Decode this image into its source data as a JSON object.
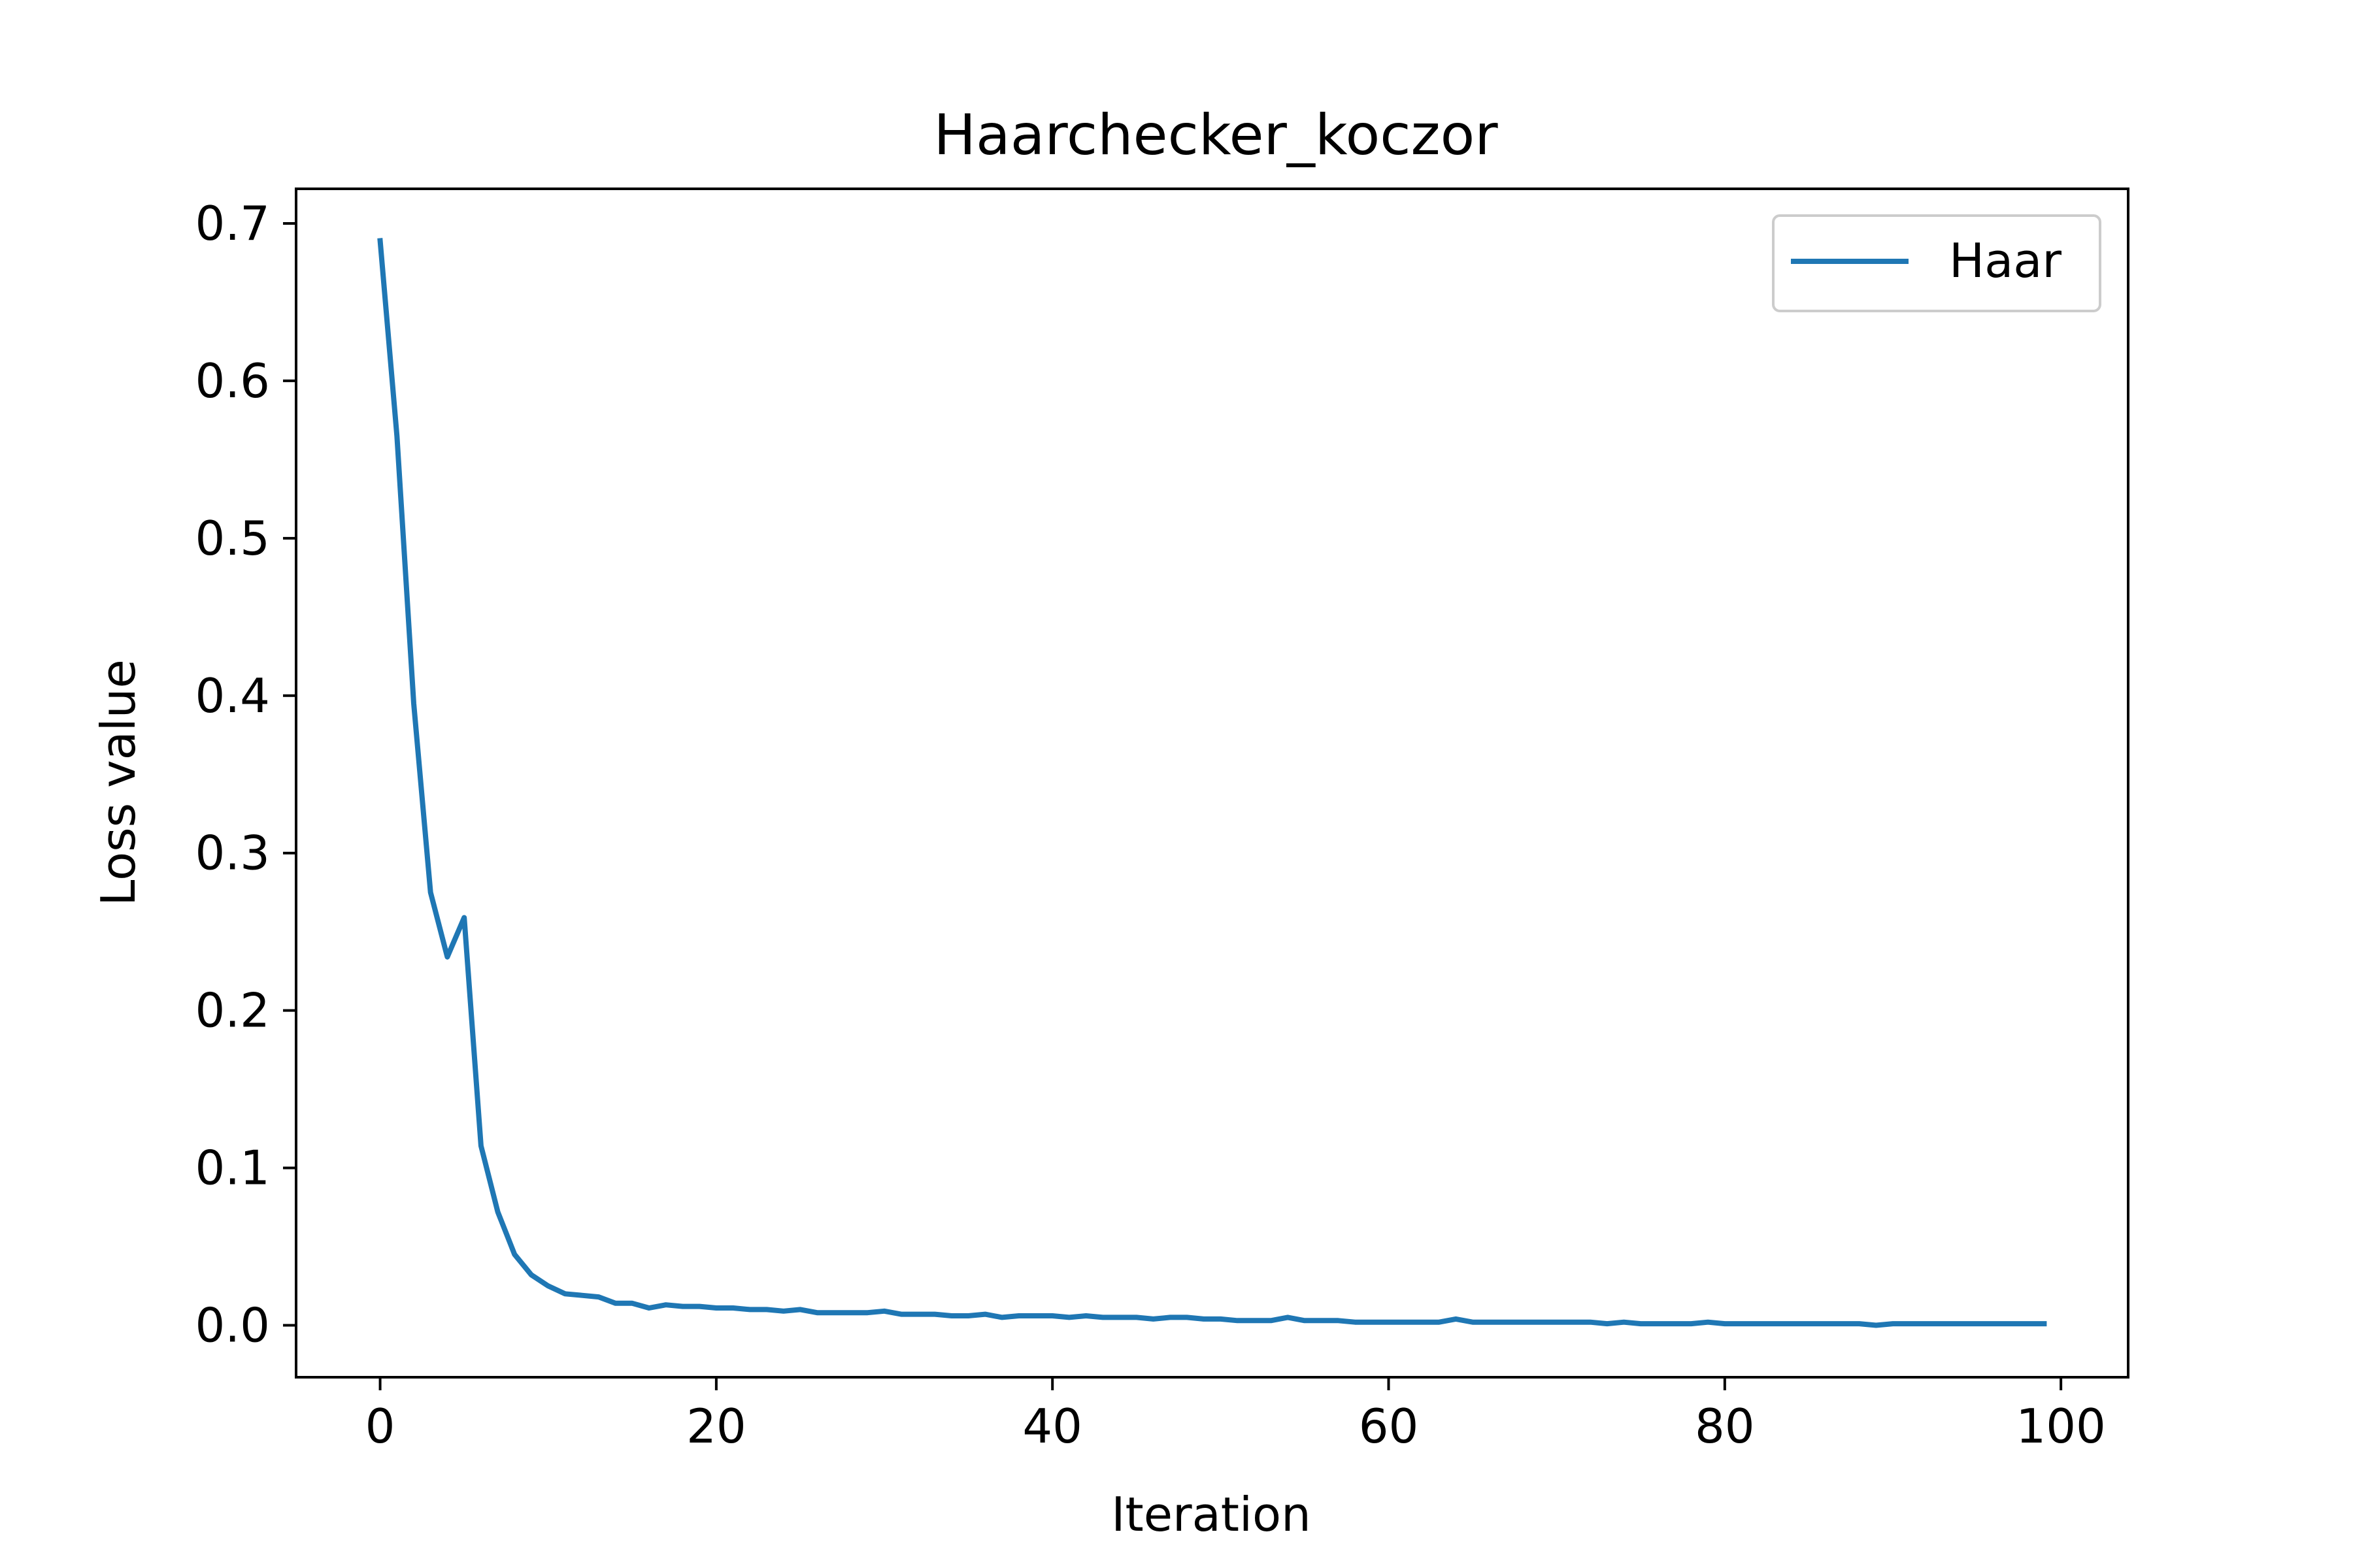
{
  "chart_data": {
    "type": "line",
    "title": "Haarchecker_koczor",
    "xlabel": "Iteration",
    "ylabel": "Loss value",
    "xlim": [
      -5,
      104
    ],
    "ylim": [
      -0.033,
      0.722
    ],
    "xticks": [
      0,
      20,
      40,
      60,
      80,
      100
    ],
    "yticks": [
      0.0,
      0.1,
      0.2,
      0.3,
      0.4,
      0.5,
      0.6,
      0.7
    ],
    "grid": false,
    "legend_position": "top-right",
    "series": [
      {
        "name": "Haar",
        "color": "#1f77b4",
        "x": [
          0,
          1,
          2,
          3,
          4,
          5,
          6,
          7,
          8,
          9,
          10,
          11,
          12,
          13,
          14,
          15,
          16,
          17,
          18,
          19,
          20,
          21,
          22,
          23,
          24,
          25,
          26,
          27,
          28,
          29,
          30,
          31,
          32,
          33,
          34,
          35,
          36,
          37,
          38,
          39,
          40,
          41,
          42,
          43,
          44,
          45,
          46,
          47,
          48,
          49,
          50,
          51,
          52,
          53,
          54,
          55,
          56,
          57,
          58,
          59,
          60,
          61,
          62,
          63,
          64,
          65,
          66,
          67,
          68,
          69,
          70,
          71,
          72,
          73,
          74,
          75,
          76,
          77,
          78,
          79,
          80,
          81,
          82,
          83,
          84,
          85,
          86,
          87,
          88,
          89,
          90,
          91,
          92,
          93,
          94,
          95,
          96,
          97,
          98,
          99
        ],
        "values": [
          0.689,
          0.565,
          0.395,
          0.275,
          0.234,
          0.259,
          0.114,
          0.072,
          0.045,
          0.032,
          0.025,
          0.02,
          0.019,
          0.018,
          0.014,
          0.014,
          0.011,
          0.013,
          0.012,
          0.012,
          0.011,
          0.011,
          0.01,
          0.01,
          0.009,
          0.01,
          0.008,
          0.008,
          0.008,
          0.008,
          0.009,
          0.007,
          0.007,
          0.007,
          0.006,
          0.006,
          0.007,
          0.005,
          0.006,
          0.006,
          0.006,
          0.005,
          0.006,
          0.005,
          0.005,
          0.005,
          0.004,
          0.005,
          0.005,
          0.004,
          0.004,
          0.003,
          0.003,
          0.003,
          0.005,
          0.003,
          0.003,
          0.003,
          0.002,
          0.002,
          0.002,
          0.002,
          0.002,
          0.002,
          0.004,
          0.002,
          0.002,
          0.002,
          0.002,
          0.002,
          0.002,
          0.002,
          0.002,
          0.001,
          0.002,
          0.001,
          0.001,
          0.001,
          0.001,
          0.002,
          0.001,
          0.001,
          0.001,
          0.001,
          0.001,
          0.001,
          0.001,
          0.001,
          0.001,
          0.0,
          0.001,
          0.001,
          0.001,
          0.001,
          0.001,
          0.001,
          0.001,
          0.001,
          0.001,
          0.001
        ]
      }
    ]
  }
}
